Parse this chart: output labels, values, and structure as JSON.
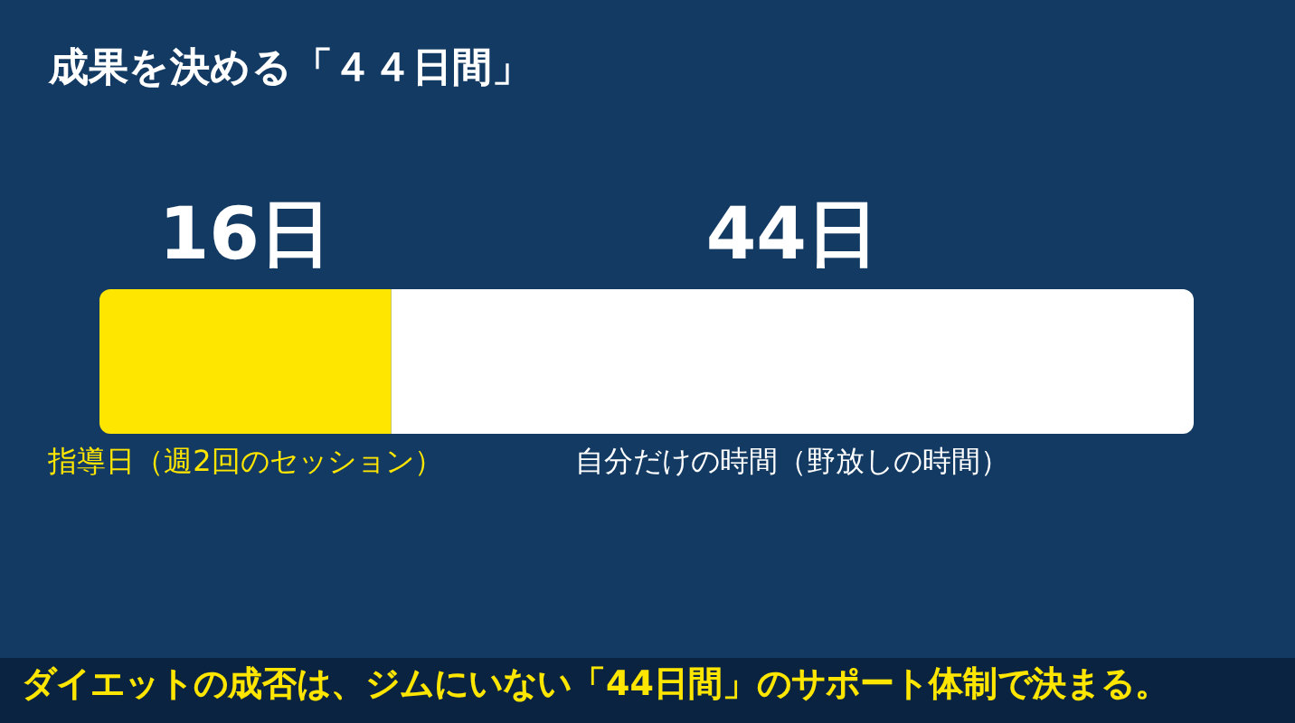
{
  "chart_data": {
    "type": "bar",
    "title": "成果を決める「４４日間」",
    "orientation": "horizontal",
    "stacked": true,
    "categories": [
      null
    ],
    "legend": false,
    "series": [
      {
        "name": "指導日（週2回のセッション）",
        "color": "#ffe600",
        "values": [
          16
        ],
        "value_labels": [
          "16日"
        ]
      },
      {
        "name": "自分だけの時間（野放しの時間）",
        "color": "#ffffff",
        "values": [
          44
        ],
        "value_labels": [
          "44日"
        ]
      }
    ],
    "annotations": [
      "ダイエットの成否は、ジムにいない「44日間」のサポート体制で決まる。"
    ]
  }
}
